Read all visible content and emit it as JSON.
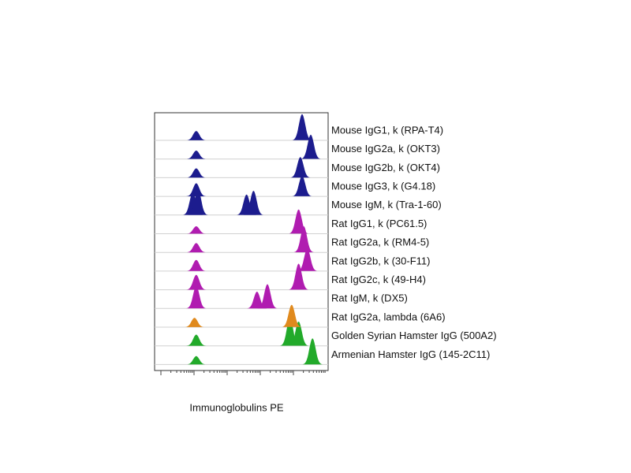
{
  "chart_data": {
    "type": "ridgeline",
    "x_label": "Immunoglobulins PE",
    "log_scale": true,
    "series": [
      {
        "name": "Mouse IgG1, k (RPA-T4)",
        "color": "#1c1c8e",
        "peaks": [
          {
            "x": 0.24,
            "height": 0.5
          },
          {
            "x": 0.85,
            "height": 1.4
          }
        ]
      },
      {
        "name": "Mouse IgG2a, k  (OKT3)",
        "color": "#1c1c8e",
        "peaks": [
          {
            "x": 0.24,
            "height": 0.45
          },
          {
            "x": 0.9,
            "height": 1.3
          }
        ]
      },
      {
        "name": "Mouse IgG2b, k  (OKT4)",
        "color": "#1c1c8e",
        "peaks": [
          {
            "x": 0.24,
            "height": 0.5
          },
          {
            "x": 0.84,
            "height": 1.1
          }
        ]
      },
      {
        "name": "Mouse IgG3, k  (G4.18)",
        "color": "#1c1c8e",
        "peaks": [
          {
            "x": 0.24,
            "height": 0.7
          },
          {
            "x": 0.85,
            "height": 1.1
          }
        ]
      },
      {
        "name": "Mouse IgM, k  (Tra-1-60)",
        "color": "#1c1c8e",
        "peaks": [
          {
            "x": 0.22,
            "height": 1.2
          },
          {
            "x": 0.25,
            "height": 1.4
          },
          {
            "x": 0.53,
            "height": 1.1
          },
          {
            "x": 0.57,
            "height": 1.3
          }
        ]
      },
      {
        "name": "Rat IgG1, k (PC61.5)",
        "color": "#b01cb0",
        "peaks": [
          {
            "x": 0.24,
            "height": 0.4
          },
          {
            "x": 0.83,
            "height": 1.3
          }
        ]
      },
      {
        "name": "Rat IgG2a, k (RM4-5)",
        "color": "#b01cb0",
        "peaks": [
          {
            "x": 0.24,
            "height": 0.5
          },
          {
            "x": 0.86,
            "height": 1.4
          }
        ]
      },
      {
        "name": "Rat IgG2b, k  (30-F11)",
        "color": "#b01cb0",
        "peaks": [
          {
            "x": 0.24,
            "height": 0.6
          },
          {
            "x": 0.88,
            "height": 1.2
          }
        ]
      },
      {
        "name": "Rat IgG2c, k  (49-H4)",
        "color": "#b01cb0",
        "peaks": [
          {
            "x": 0.24,
            "height": 0.8
          },
          {
            "x": 0.83,
            "height": 1.4
          }
        ]
      },
      {
        "name": "Rat IgM, k  (DX5)",
        "color": "#b01cb0",
        "peaks": [
          {
            "x": 0.24,
            "height": 1.2
          },
          {
            "x": 0.59,
            "height": 0.9
          },
          {
            "x": 0.65,
            "height": 1.3
          }
        ]
      },
      {
        "name": "Rat IgG2a, lambda  (6A6)",
        "color": "#e08a1e",
        "peaks": [
          {
            "x": 0.23,
            "height": 0.5
          },
          {
            "x": 0.79,
            "height": 1.2
          }
        ]
      },
      {
        "name": "Golden Syrian Hamster IgG (500A2)",
        "color": "#22aa2a",
        "peaks": [
          {
            "x": 0.24,
            "height": 0.6
          },
          {
            "x": 0.78,
            "height": 1.5
          },
          {
            "x": 0.83,
            "height": 1.3
          }
        ]
      },
      {
        "name": "Armenian Hamster IgG (145-2C11)",
        "color": "#22aa2a",
        "peaks": [
          {
            "x": 0.24,
            "height": 0.45
          },
          {
            "x": 0.91,
            "height": 1.4
          }
        ]
      }
    ]
  }
}
